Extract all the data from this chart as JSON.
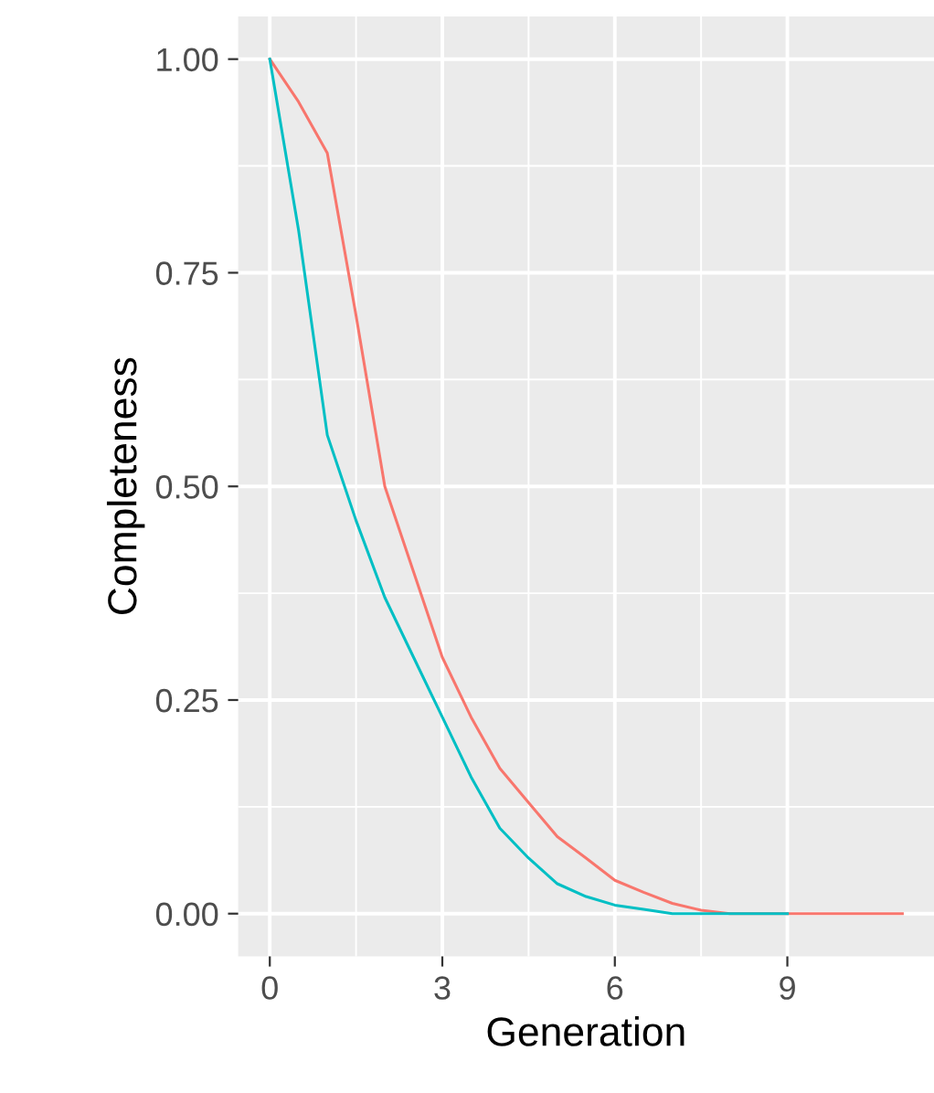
{
  "chart_data": {
    "type": "line",
    "xlabel": "Generation",
    "ylabel": "Completeness",
    "xlim": [
      -0.55,
      11.55
    ],
    "ylim": [
      -0.05,
      1.05
    ],
    "xticks": [
      0,
      3,
      6,
      9
    ],
    "yticks": [
      {
        "value": 0,
        "label": "0.00"
      },
      {
        "value": 0.25,
        "label": "0.25"
      },
      {
        "value": 0.5,
        "label": "0.50"
      },
      {
        "value": 0.75,
        "label": "0.75"
      },
      {
        "value": 1,
        "label": "1.00"
      }
    ],
    "grid": true,
    "legend": false,
    "series": [
      {
        "color": "#f8766d",
        "x": [
          0,
          0.5,
          1,
          1.5,
          2,
          2.5,
          3,
          3.5,
          4,
          4.5,
          5,
          5.5,
          6,
          6.5,
          7,
          7.5,
          8,
          9,
          10,
          11
        ],
        "values": [
          1.0,
          0.95,
          0.89,
          0.7,
          0.5,
          0.4,
          0.3,
          0.23,
          0.17,
          0.13,
          0.09,
          0.065,
          0.039,
          0.025,
          0.012,
          0.004,
          0.0,
          0.0,
          0.0,
          0.0
        ]
      },
      {
        "color": "#00bfc4",
        "x": [
          0,
          0.5,
          1,
          1.5,
          2,
          2.5,
          3,
          3.5,
          4,
          4.5,
          5,
          5.5,
          6,
          6.5,
          7,
          8,
          9
        ],
        "values": [
          1.0,
          0.8,
          0.56,
          0.46,
          0.37,
          0.3,
          0.23,
          0.16,
          0.1,
          0.065,
          0.035,
          0.02,
          0.01,
          0.005,
          0.0,
          0.0,
          0.0
        ]
      }
    ]
  }
}
